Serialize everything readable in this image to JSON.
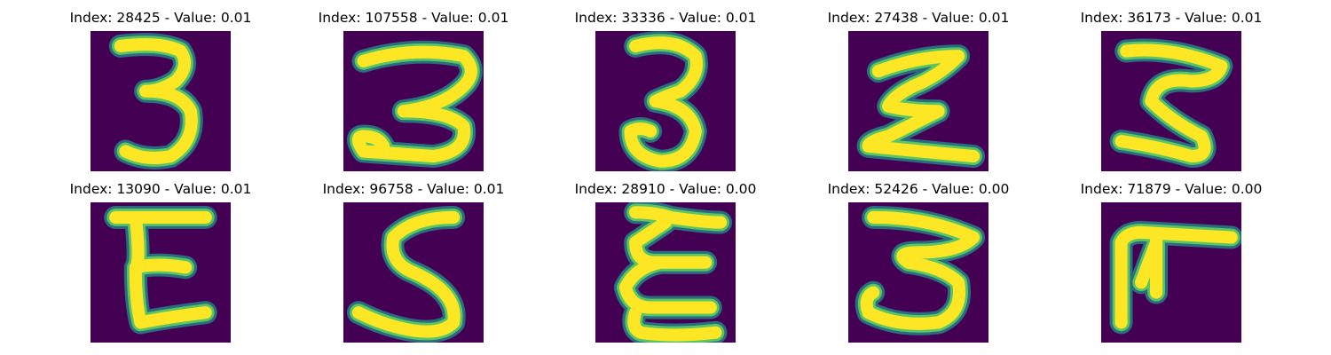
{
  "colors": {
    "background": "#440154",
    "stroke_core": "#fde725",
    "stroke_edge": "#21918c",
    "stroke_mid": "#5ec962"
  },
  "panels": [
    {
      "title": "Index: 28425 - Value: 0.01",
      "glyph": "3"
    },
    {
      "title": "Index: 107558 - Value: 0.01",
      "glyph": "3"
    },
    {
      "title": "Index: 33336 - Value: 0.01",
      "glyph": "3"
    },
    {
      "title": "Index: 27438 - Value: 0.01",
      "glyph": "Σ"
    },
    {
      "title": "Index: 36173 - Value: 0.01",
      "glyph": "3"
    },
    {
      "title": "Index: 13090 - Value: 0.01",
      "glyph": "E"
    },
    {
      "title": "Index: 96758 - Value: 0.01",
      "glyph": "S"
    },
    {
      "title": "Index: 28910 - Value: 0.00",
      "glyph": "E"
    },
    {
      "title": "Index: 52426 - Value: 0.00",
      "glyph": "3"
    },
    {
      "title": "Index: 71879 - Value: 0.00",
      "glyph": "F"
    }
  ]
}
